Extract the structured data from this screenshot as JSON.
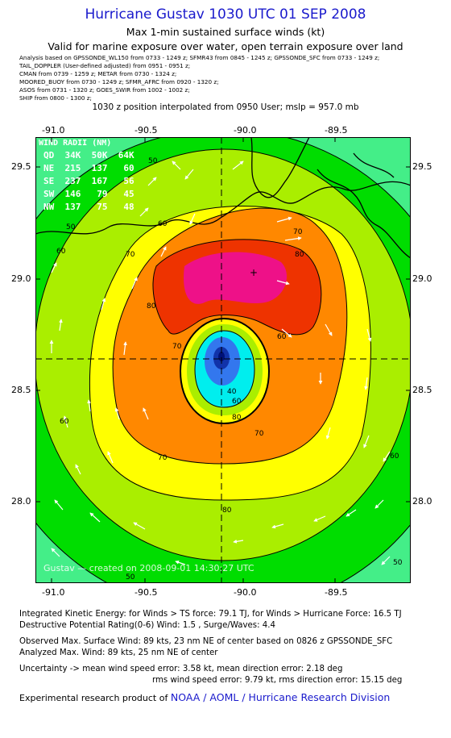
{
  "header": {
    "title": "Hurricane Gustav 1030 UTC 01 SEP 2008",
    "subtitle": "Max 1-min sustained surface winds (kt)",
    "validity": "Valid for marine exposure over water, open terrain exposure over land"
  },
  "sources": [
    "Analysis based on  GPSSONDE_WL150 from 0733 - 1249 z;  SFMR43 from 0845 - 1245 z;  GPSSONDE_SFC from 0733 - 1249 z;",
    "TAIL_DOPPLER  (User-defined adjusted)  from 0951 - 0951 z;",
    "CMAN from 0739 - 1259 z;  METAR from 0730 - 1324 z;",
    "MOORED_BUOY from 0730 - 1249 z;  SFMR_AFRC from 0920 - 1320 z;",
    "ASOS from 0731 - 1320 z;  GOES_SWIR from 1002 - 1002 z;",
    "SHIP from 0800 - 1300 z;"
  ],
  "position_note": "1030 z position interpolated from 0950 User; mslp = 957.0 mb",
  "map": {
    "lon_ticks": [
      "-91.0",
      "-90.5",
      "-90.0",
      "-89.5"
    ],
    "lat_ticks": [
      "29.5",
      "29.0",
      "28.5",
      "28.0"
    ],
    "watermark": "Gustav — created on 2008-09-01 14:30:27 UTC",
    "wind_radii": {
      "title": "WIND RADII (NM)",
      "header": "QD  34K  50K  64K",
      "rows": [
        "NE  215  137   60",
        "SE  237  167   56",
        "SW  146   79   45",
        "NW  137   75   48"
      ]
    },
    "contour_labels": [
      "50",
      "60",
      "70",
      "80",
      "50",
      "60",
      "70",
      "80",
      "70",
      "40",
      "60",
      "80",
      "70",
      "60",
      "60",
      "70",
      "80",
      "50",
      "60",
      "50"
    ],
    "colors": {
      "lt_green": "#44ee88",
      "green": "#00dd00",
      "yellowgreen": "#aaee00",
      "yellow": "#ffff00",
      "orange": "#ff8800",
      "red": "#ee3300",
      "magenta": "#ee1188",
      "cyan": "#00eeee"
    }
  },
  "footer": {
    "ike": "Integrated Kinetic Energy:  for Winds > TS force: 79.1 TJ,  for Winds > Hurricane Force: 16.5 TJ",
    "destructive": "Destructive Potential Rating(0-6)   Wind: 1.5 , Surge/Waves: 4.4",
    "observed": "Observed Max. Surface Wind: 89 kts, 23 nm NE of center based on 0826 z GPSSONDE_SFC",
    "analyzed": "Analyzed Max. Wind: 89 kts, 25 nm NE of center",
    "uncertainty1": "Uncertainty -> mean wind speed error: 3.58 kt,   mean direction error: 2.18 deg",
    "uncertainty2": "rms wind speed error: 9.79 kt,   rms direction error: 15.15 deg",
    "product_prefix": "Experimental research product of ",
    "product_link": "NOAA / AOML / Hurricane Research Division"
  }
}
